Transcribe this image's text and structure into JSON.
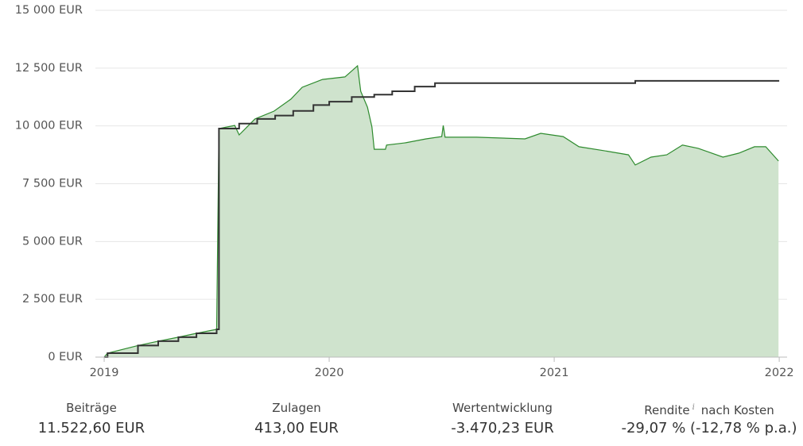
{
  "chart_data": {
    "type": "line",
    "xlim": [
      2018.961,
      2022.035
    ],
    "xticks": [
      2019,
      2020,
      2021,
      2022
    ],
    "ylim": [
      0,
      15000
    ],
    "yticks": [
      {
        "value": 0,
        "label": "0 EUR"
      },
      {
        "value": 2500,
        "label": "2 500 EUR"
      },
      {
        "value": 5000,
        "label": "5 000 EUR"
      },
      {
        "value": 7500,
        "label": "7 500 EUR"
      },
      {
        "value": 10000,
        "label": "10 000 EUR"
      },
      {
        "value": 12500,
        "label": "12 500 EUR"
      },
      {
        "value": 15000,
        "label": "15 000 EUR"
      }
    ],
    "grid": true,
    "series": [
      {
        "color": "#2e8b2e",
        "fill": "#cfe3cd",
        "area": true,
        "x": [
          2019.0,
          2019.015,
          2019.15,
          2019.24,
          2019.33,
          2019.41,
          2019.5,
          2019.51,
          2019.58,
          2019.6,
          2019.67,
          2019.755,
          2019.83,
          2019.88,
          2019.97,
          2020.07,
          2020.126,
          2020.14,
          2020.17,
          2020.19,
          2020.2,
          2020.25,
          2020.255,
          2020.34,
          2020.43,
          2020.5,
          2020.507,
          2020.515,
          2020.655,
          2020.87,
          2020.94,
          2021.04,
          2021.11,
          2021.22,
          2021.33,
          2021.36,
          2021.43,
          2021.5,
          2021.57,
          2021.64,
          2021.75,
          2021.82,
          2021.89,
          2021.94,
          2021.997
        ],
        "values": [
          0,
          170,
          500,
          690,
          860,
          1030,
          1200,
          9886,
          10020,
          9610,
          10300,
          10640,
          11160,
          11670,
          12010,
          12120,
          12600,
          11500,
          10810,
          9955,
          8990,
          8990,
          9170,
          9270,
          9440,
          9540,
          10020,
          9510,
          9510,
          9440,
          9680,
          9540,
          9100,
          8930,
          8750,
          8310,
          8650,
          8750,
          9170,
          9030,
          8650,
          8820,
          9100,
          9100,
          8480
        ]
      },
      {
        "color": "#333333",
        "step": "after",
        "x": [
          2019.0,
          2019.015,
          2019.15,
          2019.24,
          2019.33,
          2019.41,
          2019.5,
          2019.51,
          2019.6,
          2019.68,
          2019.76,
          2019.84,
          2019.93,
          2020.0,
          2020.1,
          2020.2,
          2020.28,
          2020.38,
          2020.47,
          2021.36,
          2022.0
        ],
        "values": [
          0,
          170,
          500,
          690,
          860,
          1030,
          1200,
          9886,
          10100,
          10300,
          10450,
          10650,
          10900,
          11050,
          11250,
          11350,
          11500,
          11700,
          11850,
          11950,
          11950
        ]
      }
    ]
  },
  "stats": [
    {
      "label": "Beiträge",
      "value": "11.522,60 EUR"
    },
    {
      "label": "Zulagen",
      "value": "413,00 EUR"
    },
    {
      "label": "Wertentwicklung",
      "value": "-3.470,23 EUR"
    },
    {
      "label": "Rendite",
      "info": "i",
      "label_suffix": "nach Kosten",
      "value": "-29,07 % (-12,78 % p.a.)"
    }
  ]
}
